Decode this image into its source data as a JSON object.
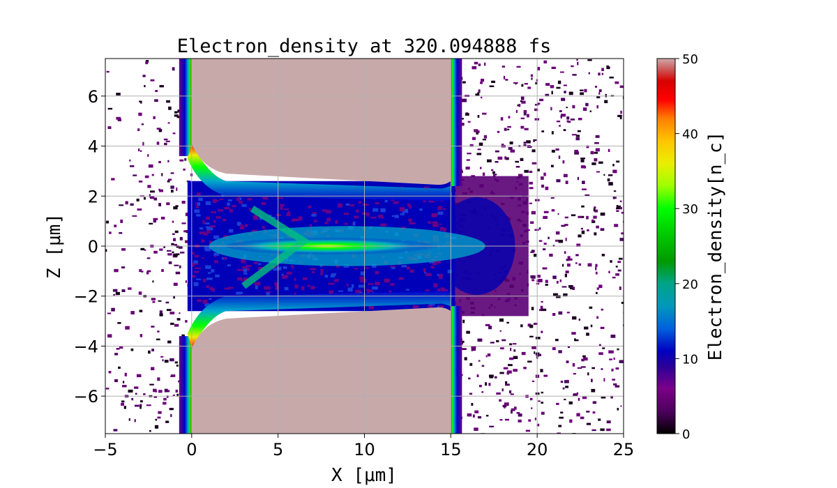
{
  "chart_data": {
    "type": "heatmap",
    "title": "Electron_density at 320.094888 fs",
    "xlabel": "X [μm]",
    "ylabel": "Z [μm]",
    "xlim": [
      -5,
      25
    ],
    "ylim": [
      -7.5,
      7.5
    ],
    "x_ticks": [
      -5,
      0,
      5,
      10,
      15,
      20,
      25
    ],
    "x_tick_labels": [
      "−5",
      "0",
      "5",
      "10",
      "15",
      "20",
      "25"
    ],
    "y_ticks": [
      -6,
      -4,
      -2,
      0,
      2,
      4,
      6
    ],
    "y_tick_labels": [
      "−6",
      "−4",
      "−2",
      "0",
      "2",
      "4",
      "6"
    ],
    "grid": true,
    "colorbar": {
      "label": "Electron_density[n_c]",
      "range": [
        0,
        50
      ],
      "ticks": [
        0,
        10,
        20,
        30,
        40,
        50
      ],
      "tick_labels": [
        "0",
        "10",
        "20",
        "30",
        "40",
        "50"
      ],
      "colormap": "nipy_spectral"
    },
    "regions": [
      {
        "name": "saturated target upper",
        "x": [
          0,
          15
        ],
        "z": [
          2.6,
          7.5
        ],
        "density": 50
      },
      {
        "name": "saturated target lower",
        "x": [
          0,
          15
        ],
        "z": [
          -7.5,
          -2.6
        ],
        "density": 50
      },
      {
        "name": "channel",
        "x": [
          0,
          15
        ],
        "z": [
          -2.6,
          2.6
        ],
        "density": 8
      },
      {
        "name": "axial filament",
        "x": [
          3,
          17
        ],
        "z": [
          -0.5,
          0.5
        ],
        "density": 22
      }
    ]
  }
}
